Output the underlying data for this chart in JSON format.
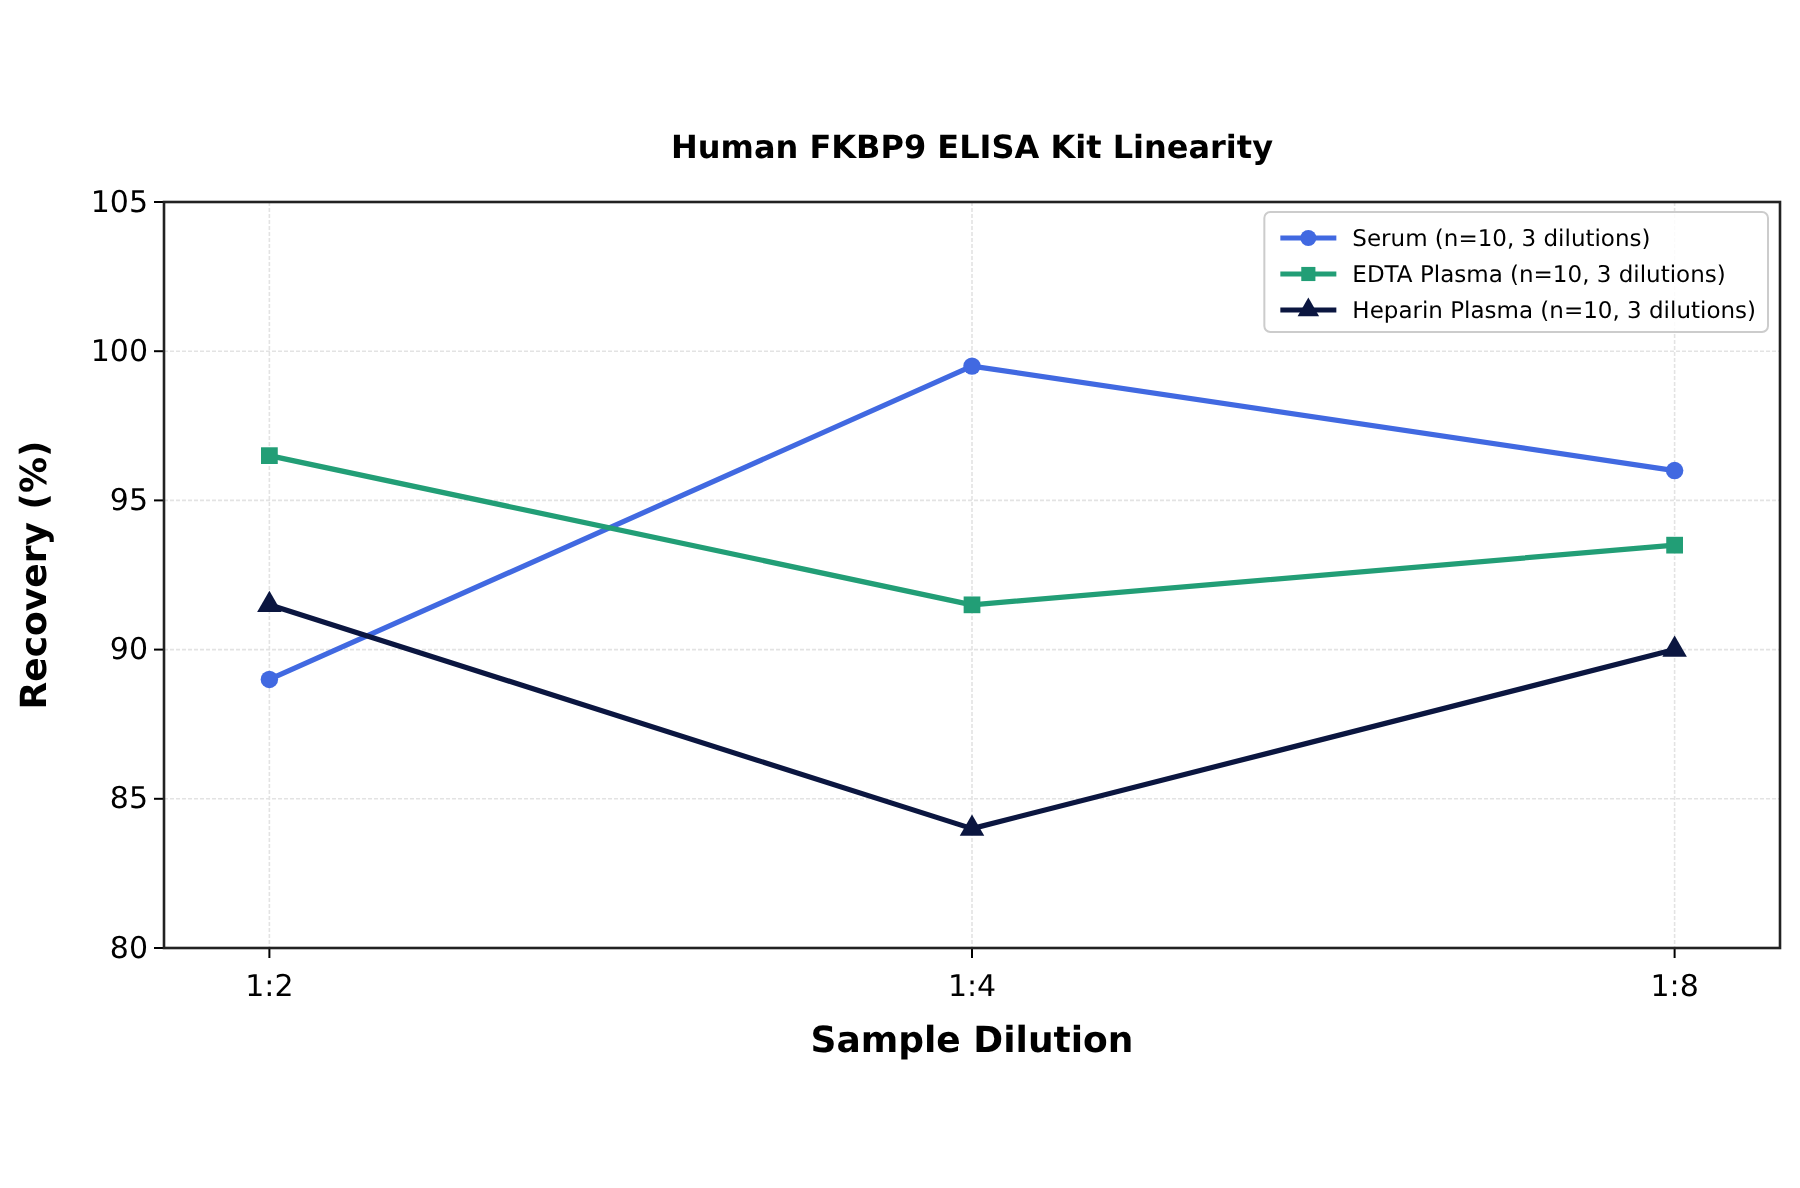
{
  "chart_data": {
    "type": "line",
    "title": "Human FKBP9 ELISA Kit Linearity",
    "xlabel": "Sample Dilution",
    "ylabel": "Recovery (%)",
    "categories": [
      "1:2",
      "1:4",
      "1:8"
    ],
    "series": [
      {
        "name": "Serum (n=10, 3 dilutions)",
        "color": "#4169e1",
        "marker": "circle",
        "values": [
          89,
          99.5,
          96
        ]
      },
      {
        "name": "EDTA Plasma (n=10, 3 dilutions)",
        "color": "#229e76",
        "marker": "square",
        "values": [
          96.5,
          91.5,
          93.5
        ]
      },
      {
        "name": "Heparin Plasma (n=10, 3 dilutions)",
        "color": "#0b1640",
        "marker": "triangle",
        "values": [
          91.5,
          84,
          90
        ]
      }
    ],
    "ylim": [
      80,
      105
    ],
    "yticks": [
      80,
      85,
      90,
      95,
      100,
      105
    ],
    "grid": true,
    "legend": "top right",
    "line_style": "solid"
  }
}
